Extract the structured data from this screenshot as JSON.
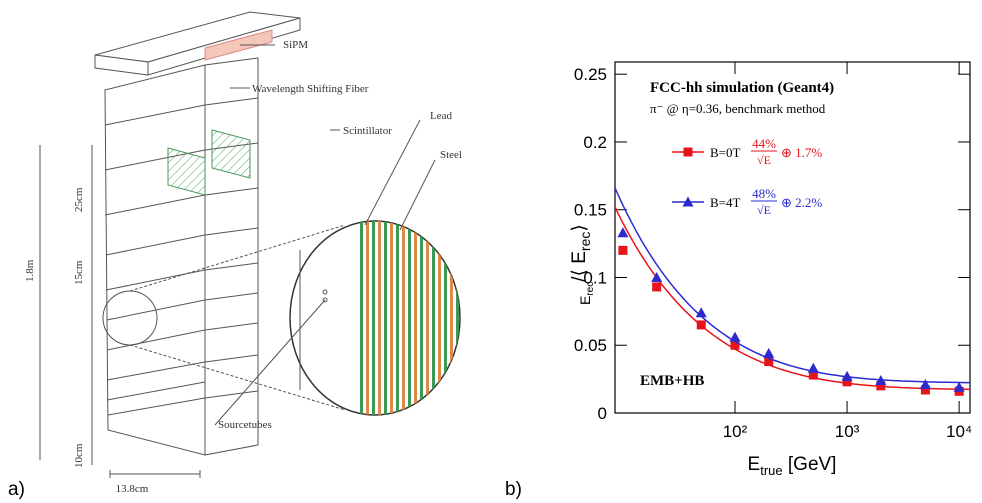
{
  "diagram": {
    "labels": {
      "sipm": "SiPM",
      "fiber": "Wavelength Shifting Fiber",
      "scintillator": "Scintillator",
      "lead": "Lead",
      "steel": "Steel",
      "d25": "25cm",
      "d15": "15cm",
      "height": "1.8m",
      "d10": "10cm",
      "sourcetubes": "Sourcetubes",
      "width": "13.8cm"
    },
    "panel_a": "a)",
    "panel_b": "b)"
  },
  "chart_data": {
    "type": "scatter",
    "title": "FCC-hh simulation (Geant4)",
    "subtitle": "π⁻ @ η=0.36, benchmark method",
    "annotation": "EMB+HB",
    "xlabel": {
      "main": "E",
      "sub": "true",
      "unit": " [GeV]"
    },
    "ylabel": [
      "σ",
      "E",
      "rec",
      "/⟨ E",
      "rec",
      "⟩"
    ],
    "xscale": "log",
    "xlim": [
      8.5,
      12500
    ],
    "xticks": [
      {
        "value": 100,
        "label": "10²"
      },
      {
        "value": 1000,
        "label": "10³"
      },
      {
        "value": 10000,
        "label": "10⁴"
      }
    ],
    "ylim": [
      0,
      0.259
    ],
    "yticks": [
      0,
      0.05,
      0.1,
      0.15,
      0.2,
      0.25
    ],
    "x": [
      10,
      20,
      50,
      100,
      200,
      500,
      1000,
      2000,
      5000,
      10000
    ],
    "series": [
      {
        "name": "B=0T",
        "color": "#e8141b",
        "marker": "square",
        "values": [
          0.12,
          0.093,
          0.065,
          0.05,
          0.038,
          0.028,
          0.023,
          0.02,
          0.017,
          0.016
        ],
        "fit_stochastic": {
          "value": 44,
          "label": "44%"
        },
        "fit_denominator": "√E",
        "fit_constant": {
          "value": 1.7,
          "label": "⊕ 1.7%"
        }
      },
      {
        "name": "B=4T",
        "color": "#2b2bd0",
        "marker": "triangle",
        "values": [
          0.133,
          0.1,
          0.074,
          0.056,
          0.044,
          0.033,
          0.027,
          0.024,
          0.021,
          0.019
        ],
        "fit_stochastic": {
          "value": 48,
          "label": "48%"
        },
        "fit_denominator": "√E",
        "fit_constant": {
          "value": 2.2,
          "label": "⊕ 2.2%"
        }
      }
    ]
  }
}
